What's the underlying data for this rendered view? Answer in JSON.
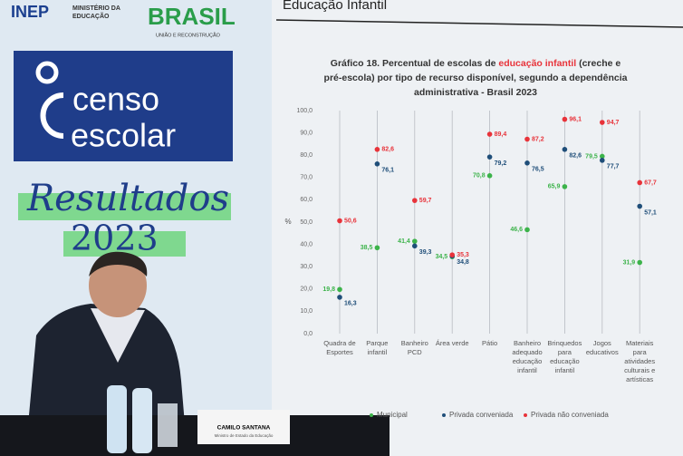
{
  "scene": {
    "inep": "INEP",
    "ministry": "MINISTÉRIO DA EDUCAÇÃO",
    "brasil": "BRASIL",
    "brasil_tagline": "UNIÃO E RECONSTRUÇÃO",
    "censo_line1": "censo",
    "censo_line2": "escolar",
    "resultados": "Resultados",
    "year": "2023",
    "nameplate": "CAMILO SANTANA",
    "nameplate_role": "Ministro de Estado da Educação",
    "screen_header": "Educação Infantil"
  },
  "chart_data": {
    "type": "scatter",
    "title_prefix": "Gráfico 18. Percentual de escolas de ",
    "title_highlight": "educação infantil",
    "title_suffix": " (creche e pré-escola) por tipo de recurso disponível, segundo a dependência administrativa - Brasil 2023",
    "y_label": "%",
    "categories": [
      "Quadra de Esportes",
      "Parque infantil",
      "Banheiro PCD",
      "Área verde",
      "Pátio",
      "Banheiro adequado educação infantil",
      "Brinquedos para educação infantil",
      "Jogos educativos",
      "Materiais para atividades culturais e artísticas"
    ],
    "series": [
      {
        "name": "Municipal",
        "color": "#3cb34a",
        "values": [
          19.8,
          38.5,
          41.4,
          34.5,
          70.8,
          46.6,
          65.9,
          79.5,
          31.9
        ],
        "value_labels": [
          "19,8",
          "38,5",
          "41,4",
          "34,5",
          "70,8",
          "46,6",
          "65,9",
          "79,5",
          "31,9"
        ]
      },
      {
        "name": "Privada conveniada",
        "color": "#1f4e79",
        "values": [
          16.3,
          76.1,
          39.3,
          34.8,
          79.2,
          76.5,
          82.6,
          77.7,
          57.1
        ],
        "value_labels": [
          "16,3",
          "76,1",
          "39,3",
          "34,8",
          "79,2",
          "76,5",
          "82,6",
          "77,7",
          "57,1"
        ]
      },
      {
        "name": "Privada não conveniada",
        "color": "#e8333a",
        "values": [
          50.6,
          82.6,
          59.7,
          35.3,
          89.4,
          87.2,
          96.1,
          94.7,
          67.7
        ],
        "value_labels": [
          "50,6",
          "82,6",
          "59,7",
          "35,3",
          "89,4",
          "87,2",
          "96,1",
          "94,7",
          "67,7"
        ]
      }
    ],
    "ylim": [
      0,
      100
    ],
    "yticks": [
      {
        "value": 0,
        "label": "0,0"
      },
      {
        "value": 10,
        "label": "10,0"
      },
      {
        "value": 20,
        "label": "20,0"
      },
      {
        "value": 30,
        "label": "30,0"
      },
      {
        "value": 40,
        "label": "40,0"
      },
      {
        "value": 50,
        "label": "50,0"
      },
      {
        "value": 60,
        "label": "60,0"
      },
      {
        "value": 70,
        "label": "70,0"
      },
      {
        "value": 80,
        "label": "80,0"
      },
      {
        "value": 90,
        "label": "90,0"
      },
      {
        "value": 100,
        "label": "100,0"
      }
    ],
    "grid": true
  }
}
